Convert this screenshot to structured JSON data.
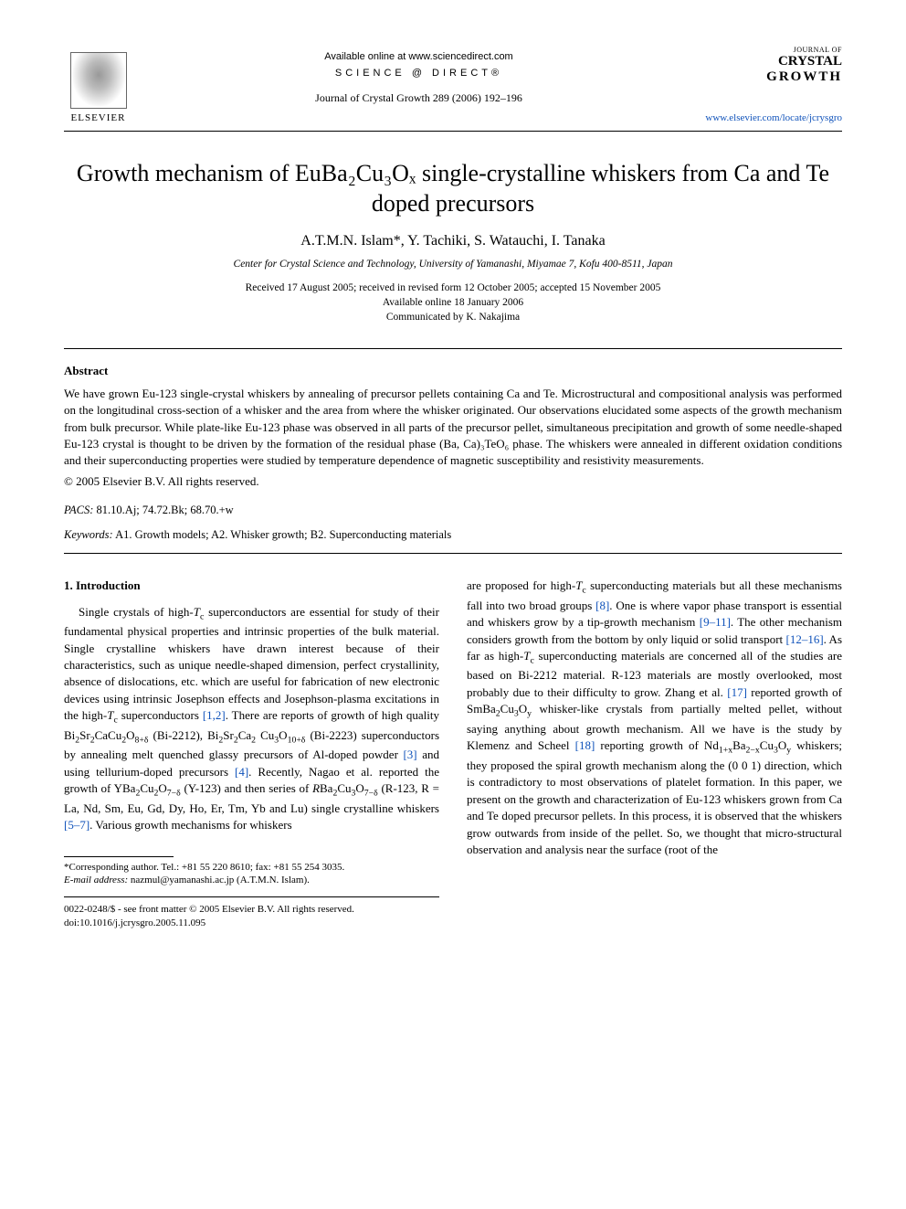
{
  "header": {
    "elsevier_label": "ELSEVIER",
    "available_online": "Available online at www.sciencedirect.com",
    "science_direct": "SCIENCE @ DIRECT®",
    "journal_ref": "Journal of Crystal Growth 289 (2006) 192–196",
    "journal_small": "JOURNAL OF",
    "journal_crystal": "CRYSTAL",
    "journal_growth": "GROWTH",
    "url": "www.elsevier.com/locate/jcrysgro"
  },
  "title": "Growth mechanism of EuBa₂Cu₃Oₓ single-crystalline whiskers from Ca and Te doped precursors",
  "authors": "A.T.M.N. Islam*, Y. Tachiki, S. Watauchi, I. Tanaka",
  "affiliation": "Center for Crystal Science and Technology, University of Yamanashi, Miyamae 7, Kofu 400-8511, Japan",
  "dates": {
    "received": "Received 17 August 2005; received in revised form 12 October 2005; accepted 15 November 2005",
    "online": "Available online 18 January 2006",
    "communicated": "Communicated by K. Nakajima"
  },
  "abstract": {
    "heading": "Abstract",
    "text": "We have grown Eu-123 single-crystal whiskers by annealing of precursor pellets containing Ca and Te. Microstructural and compositional analysis was performed on the longitudinal cross-section of a whisker and the area from where the whisker originated. Our observations elucidated some aspects of the growth mechanism from bulk precursor. While plate-like Eu-123 phase was observed in all parts of the precursor pellet, simultaneous precipitation and growth of some needle-shaped Eu-123 crystal is thought to be driven by the formation of the residual phase (Ba, Ca)₃TeO₆ phase. The whiskers were annealed in different oxidation conditions and their superconducting properties were studied by temperature dependence of magnetic susceptibility and resistivity measurements.",
    "copyright": "© 2005 Elsevier B.V. All rights reserved."
  },
  "pacs": {
    "label": "PACS:",
    "values": "81.10.Aj; 74.72.Bk; 68.70.+w"
  },
  "keywords": {
    "label": "Keywords:",
    "values": "A1. Growth models; A2. Whisker growth; B2. Superconducting materials"
  },
  "section1": {
    "heading": "1. Introduction"
  },
  "col_left_html": "Single crystals of high-<i>T</i><sub>c</sub> superconductors are essential for study of their fundamental physical properties and intrinsic properties of the bulk material. Single crystalline whiskers have drawn interest because of their characteristics, such as unique needle-shaped dimension, perfect crystallinity, absence of dislocations, etc. which are useful for fabrication of new electronic devices using intrinsic Josephson effects and Josephson-plasma excitations in the high-<i>T</i><sub>c</sub> superconductors <span class=\"ref-link\">[1,2]</span>. There are reports of growth of high quality Bi<sub>2</sub>Sr<sub>2</sub>CaCu<sub>2</sub>O<sub>8+δ</sub> (Bi-2212), Bi<sub>2</sub>Sr<sub>2</sub>Ca<sub>2</sub> Cu<sub>3</sub>O<sub>10+δ</sub> (Bi-2223) superconductors by annealing melt quenched glassy precursors of Al-doped powder <span class=\"ref-link\">[3]</span> and using tellurium-doped precursors <span class=\"ref-link\">[4]</span>. Recently, Nagao et al. reported the growth of YBa<sub>2</sub>Cu<sub>2</sub>O<sub>7−δ</sub> (Y-123) and then series of <i>R</i>Ba<sub>2</sub>Cu<sub>3</sub>O<sub>7−δ</sub> (R-123, R = La, Nd, Sm, Eu, Gd, Dy, Ho, Er, Tm, Yb and Lu) single crystalline whiskers <span class=\"ref-link\">[5–7]</span>. Various growth mechanisms for whiskers",
  "col_right_html": "are proposed for high-<i>T</i><sub>c</sub> superconducting materials but all these mechanisms fall into two broad groups <span class=\"ref-link\">[8]</span>. One is where vapor phase transport is essential and whiskers grow by a tip-growth mechanism <span class=\"ref-link\">[9–11]</span>. The other mechanism considers growth from the bottom by only liquid or solid transport <span class=\"ref-link\">[12–16]</span>. As far as high-<i>T</i><sub>c</sub> superconducting materials are concerned all of the studies are based on Bi-2212 material. R-123 materials are mostly overlooked, most probably due to their difficulty to grow. Zhang et al. <span class=\"ref-link\">[17]</span> reported growth of SmBa<sub>2</sub>Cu<sub>3</sub>O<sub>y</sub> whisker-like crystals from partially melted pellet, without saying anything about growth mechanism. All we have is the study by Klemenz and Scheel <span class=\"ref-link\">[18]</span> reporting growth of Nd<sub>1+x</sub>Ba<sub>2−x</sub>Cu<sub>3</sub>O<sub>y</sub> whiskers; they proposed the spiral growth mechanism along the (0 0 1) direction, which is contradictory to most observations of platelet formation. In this paper, we present on the growth and characterization of Eu-123 whiskers grown from Ca and Te doped precursor pellets. In this process, it is observed that the whiskers grow outwards from inside of the pellet. So, we thought that micro-structural observation and analysis near the surface (root of the",
  "footnote": {
    "corresponding": "*Corresponding author. Tel.: +81 55 220 8610; fax: +81 55 254 3035.",
    "email_label": "E-mail address:",
    "email": "nazmul@yamanashi.ac.jp (A.T.M.N. Islam)."
  },
  "footer": {
    "line1": "0022-0248/$ - see front matter © 2005 Elsevier B.V. All rights reserved.",
    "line2": "doi:10.1016/j.jcrysgro.2005.11.095"
  },
  "colors": {
    "link": "#0f52ba",
    "text": "#000000",
    "bg": "#ffffff"
  },
  "fonts": {
    "body": "Times New Roman",
    "title_size_pt": 20,
    "body_size_pt": 10,
    "abstract_size_pt": 10
  }
}
